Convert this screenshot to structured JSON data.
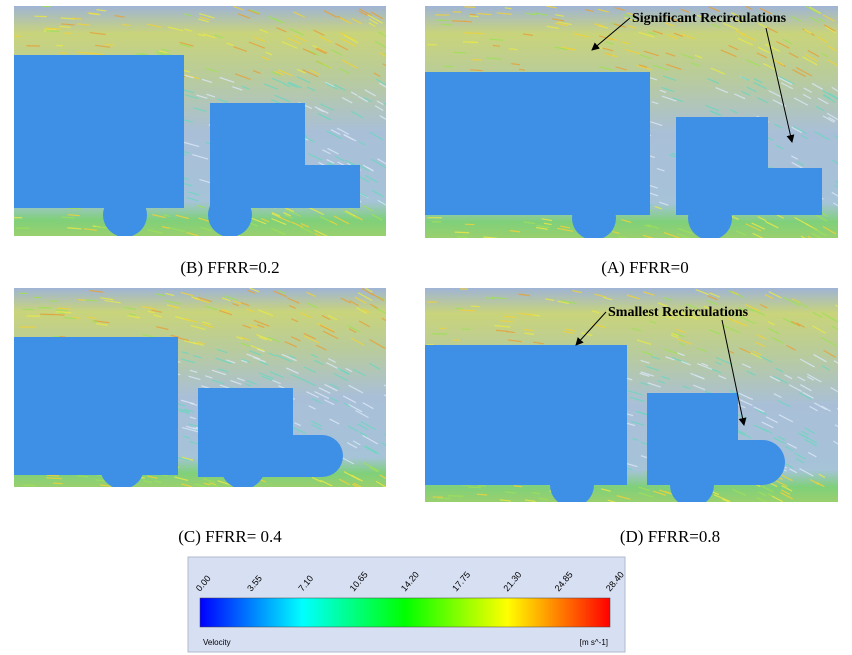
{
  "panels": [
    {
      "caption": "(B) FFRR=0.2"
    },
    {
      "caption": "(A) FFRR=0",
      "annotation": "Significant Recirculations"
    },
    {
      "caption": "(C) FFRR= 0.4"
    },
    {
      "caption": "(D) FFRR=0.8",
      "annotation": "Smallest Recirculations"
    }
  ],
  "colorbar": {
    "ticks": [
      "0.00",
      "3.55",
      "7.10",
      "10.65",
      "14.20",
      "17.75",
      "21.30",
      "24.85",
      "28.40"
    ],
    "variable": "Velocity",
    "unit": "[m s^-1]"
  }
}
